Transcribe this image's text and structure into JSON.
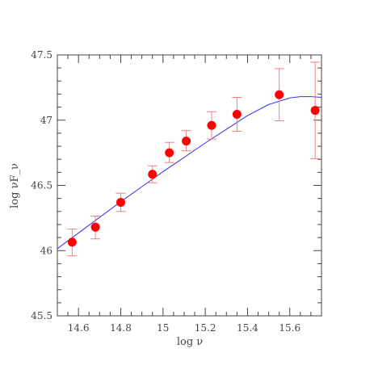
{
  "chart_data": {
    "type": "scatter",
    "xlabel": "log ν",
    "ylabel": "log νF_ν",
    "xlim": [
      14.5,
      15.75
    ],
    "ylim": [
      45.5,
      47.5
    ],
    "x_ticks": [
      {
        "value": 14.6,
        "label": "14.6"
      },
      {
        "value": 14.8,
        "label": "14.8"
      },
      {
        "value": 15.0,
        "label": "15"
      },
      {
        "value": 15.2,
        "label": "15.2"
      },
      {
        "value": 15.4,
        "label": "15.4"
      },
      {
        "value": 15.6,
        "label": "15.6"
      }
    ],
    "y_ticks": [
      {
        "value": 45.5,
        "label": "45.5"
      },
      {
        "value": 46.0,
        "label": "46"
      },
      {
        "value": 46.5,
        "label": "46.5"
      },
      {
        "value": 47.0,
        "label": "47"
      },
      {
        "value": 47.5,
        "label": "47.5"
      }
    ],
    "grid": false,
    "series": [
      {
        "kind": "points",
        "color": "#ff0000",
        "errorbar_color": "#f08080",
        "points": [
          {
            "x": 14.57,
            "y": 46.065,
            "ylo": 45.96,
            "yhi": 46.165
          },
          {
            "x": 14.68,
            "y": 46.18,
            "ylo": 46.09,
            "yhi": 46.265
          },
          {
            "x": 14.8,
            "y": 46.37,
            "ylo": 46.3,
            "yhi": 46.44
          },
          {
            "x": 14.95,
            "y": 46.585,
            "ylo": 46.52,
            "yhi": 46.65
          },
          {
            "x": 15.03,
            "y": 46.75,
            "ylo": 46.675,
            "yhi": 46.83
          },
          {
            "x": 15.11,
            "y": 46.84,
            "ylo": 46.765,
            "yhi": 46.92
          },
          {
            "x": 15.23,
            "y": 46.96,
            "ylo": 46.855,
            "yhi": 47.065
          },
          {
            "x": 15.35,
            "y": 47.045,
            "ylo": 46.915,
            "yhi": 47.175
          },
          {
            "x": 15.55,
            "y": 47.195,
            "ylo": 46.995,
            "yhi": 47.395
          },
          {
            "x": 15.72,
            "y": 47.075,
            "ylo": 46.705,
            "yhi": 47.445
          }
        ]
      },
      {
        "kind": "curve",
        "color": "#3333ee",
        "x": [
          14.5,
          14.6,
          14.7,
          14.8,
          14.9,
          15.0,
          15.1,
          15.2,
          15.3,
          15.4,
          15.5,
          15.6,
          15.65,
          15.7,
          15.75
        ],
        "y": [
          46.015,
          46.135,
          46.255,
          46.375,
          46.49,
          46.605,
          46.715,
          46.825,
          46.93,
          47.035,
          47.12,
          47.17,
          47.18,
          47.18,
          47.175
        ]
      }
    ]
  }
}
